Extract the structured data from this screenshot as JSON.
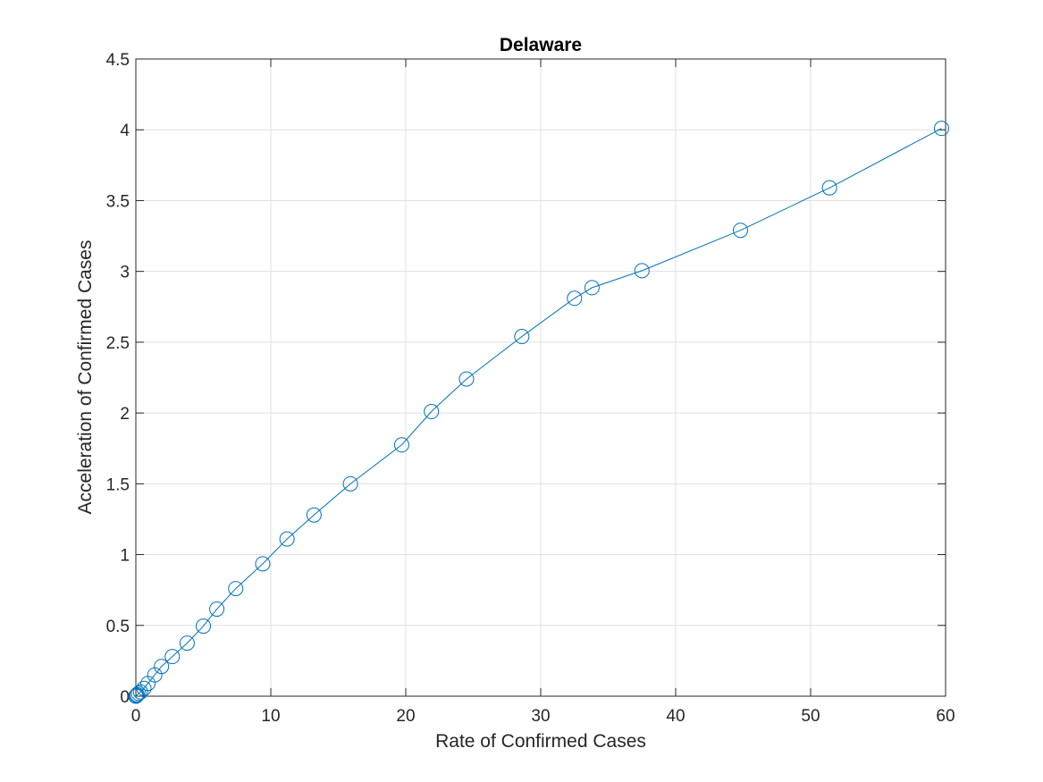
{
  "chart_data": {
    "type": "line",
    "title": "Delaware",
    "xlabel": "Rate of Confirmed Cases",
    "ylabel": "Acceleration of Confirmed Cases",
    "xlim": [
      0,
      60
    ],
    "ylim": [
      0,
      4.5
    ],
    "x_ticks": [
      0,
      10,
      20,
      30,
      40,
      50,
      60
    ],
    "y_ticks": [
      0,
      0.5,
      1,
      1.5,
      2,
      2.5,
      3,
      3.5,
      4,
      4.5
    ],
    "x_tick_labels": [
      "0",
      "10",
      "20",
      "30",
      "40",
      "50",
      "60"
    ],
    "y_tick_labels": [
      "0",
      "0.5",
      "1",
      "1.5",
      "2",
      "2.5",
      "3",
      "3.5",
      "4",
      "4.5"
    ],
    "grid": true,
    "marker": "circle",
    "line_color": "#0072BD",
    "series": [
      {
        "x": [
          0.0,
          0.05,
          0.1,
          0.2,
          0.35,
          0.6,
          0.9,
          1.4,
          1.9,
          2.7,
          3.8,
          5.0,
          6.0,
          7.4,
          9.4,
          11.2,
          13.2,
          15.9,
          19.7,
          21.9,
          24.5,
          28.6,
          32.5,
          33.8,
          37.5,
          44.8,
          51.4,
          59.7
        ],
        "y": [
          0.0,
          0.005,
          0.01,
          0.02,
          0.03,
          0.055,
          0.09,
          0.15,
          0.21,
          0.28,
          0.375,
          0.495,
          0.615,
          0.76,
          0.935,
          1.11,
          1.28,
          1.5,
          1.775,
          2.01,
          2.24,
          2.54,
          2.81,
          2.885,
          3.005,
          3.29,
          3.59,
          4.01
        ]
      }
    ]
  }
}
